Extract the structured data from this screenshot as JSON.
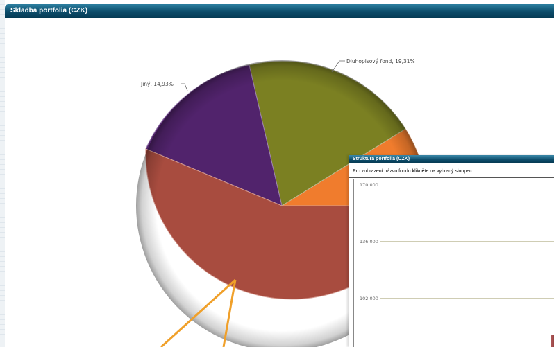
{
  "main_panel": {
    "title": "Skladba portfolia (CZK)"
  },
  "pie": {
    "slices": [
      {
        "label": "Dluhopisový fond, 19,31%",
        "value": 19.31,
        "color": "#7b8022"
      },
      {
        "label": "Jiný, 14,93%",
        "value": 14.93,
        "color": "#51236c"
      },
      {
        "label": "",
        "value": null,
        "color": "#a84c3f"
      },
      {
        "label": "",
        "value": null,
        "color": "#f07c2d"
      }
    ]
  },
  "inner_panel": {
    "title": "Struktura portfolia (CZK)",
    "hint": "Pro zobrazení názvu fondu klikněte na vybraný sloupec.",
    "y_ticks": [
      "170 000",
      "136 000",
      "102 000"
    ],
    "grid_color": "#cfcdb4"
  },
  "annotation": {
    "arrow_color": "#f0a02a"
  }
}
